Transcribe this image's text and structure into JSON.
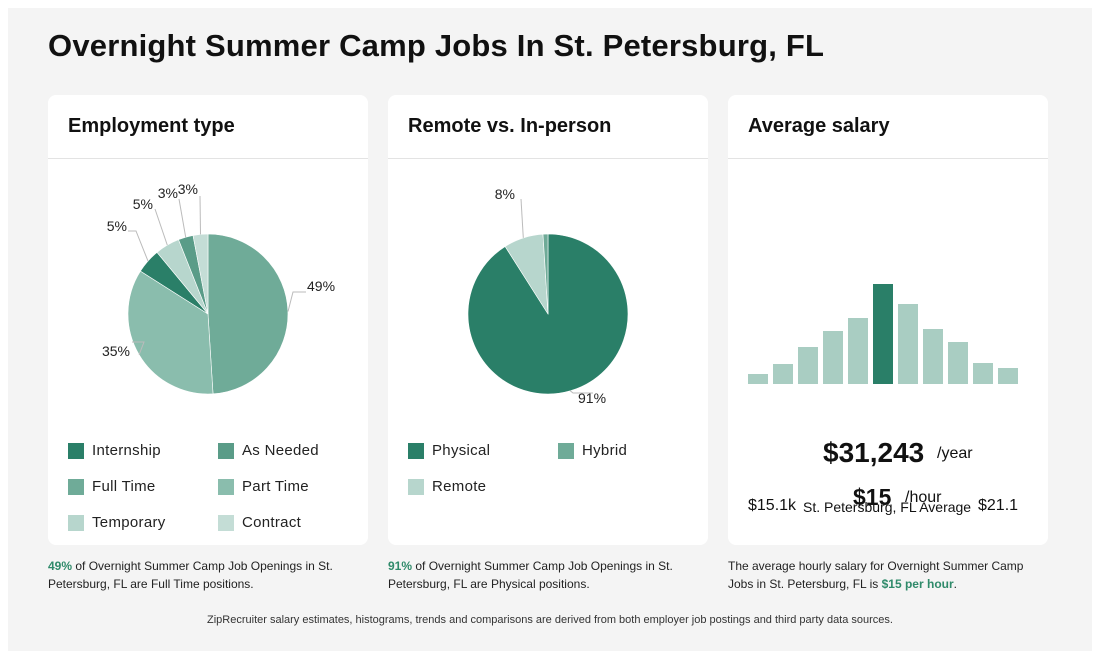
{
  "page": {
    "title": "Overnight Summer Camp Jobs In St. Petersburg, FL"
  },
  "colors": {
    "dark": "#2a7f68",
    "mid": "#5a9c88",
    "light": "#6fab98",
    "lighter": "#8abdad",
    "pale": "#b7d6cd",
    "paler": "#c4ddd6"
  },
  "chart_data": [
    {
      "type": "pie",
      "title": "Employment type",
      "slices": [
        {
          "name": "Full Time",
          "value": 49,
          "label": "49%",
          "color": "#6fab98"
        },
        {
          "name": "Part Time",
          "value": 35,
          "label": "35%",
          "color": "#8abdad"
        },
        {
          "name": "Internship",
          "value": 5,
          "label": "5%",
          "color": "#2a7f68"
        },
        {
          "name": "Temporary",
          "value": 5,
          "label": "5%",
          "color": "#b7d6cd"
        },
        {
          "name": "As Needed",
          "value": 3,
          "label": "3%",
          "color": "#5a9c88"
        },
        {
          "name": "Contract",
          "value": 3,
          "label": "3%",
          "color": "#c4ddd6"
        }
      ],
      "legend": [
        "Internship",
        "As Needed",
        "Full Time",
        "Part Time",
        "Temporary",
        "Contract"
      ]
    },
    {
      "type": "pie",
      "title": "Remote vs. In-person",
      "slices": [
        {
          "name": "Physical",
          "value": 91,
          "label": "91%",
          "color": "#2a7f68"
        },
        {
          "name": "Remote",
          "value": 8,
          "label": "8%",
          "color": "#b7d6cd"
        },
        {
          "name": "Hybrid",
          "value": 1,
          "label": "",
          "color": "#6fab98"
        }
      ],
      "legend": [
        "Physical",
        "Hybrid",
        "Remote"
      ]
    },
    {
      "type": "bar",
      "title": "Average salary",
      "values": [
        10,
        20,
        37,
        53,
        66,
        100,
        80,
        55,
        42,
        21,
        16
      ],
      "highlight_index": 5,
      "min_label": "$15.1k",
      "max_label": "$21.1",
      "mid_label": "St. Petersburg, FL Average",
      "yearly": "$31,243",
      "yearly_unit": "/year",
      "hourly": "$15",
      "hourly_unit": "/hour"
    }
  ],
  "captions": {
    "employment": {
      "pct": "49%",
      "text": " of Overnight Summer Camp Job Openings in St. Petersburg, FL are Full Time positions."
    },
    "remote": {
      "pct": "91%",
      "text": " of Overnight Summer Camp Job Openings in St. Petersburg, FL are Physical positions."
    },
    "salary": {
      "text": "The average hourly salary for Overnight Summer Camp Jobs in St. Petersburg, FL is ",
      "highlight": "$15 per hour",
      "end": "."
    }
  },
  "footer": "ZipRecruiter salary estimates, histograms, trends and comparisons are derived from both employer job postings and third party data sources."
}
